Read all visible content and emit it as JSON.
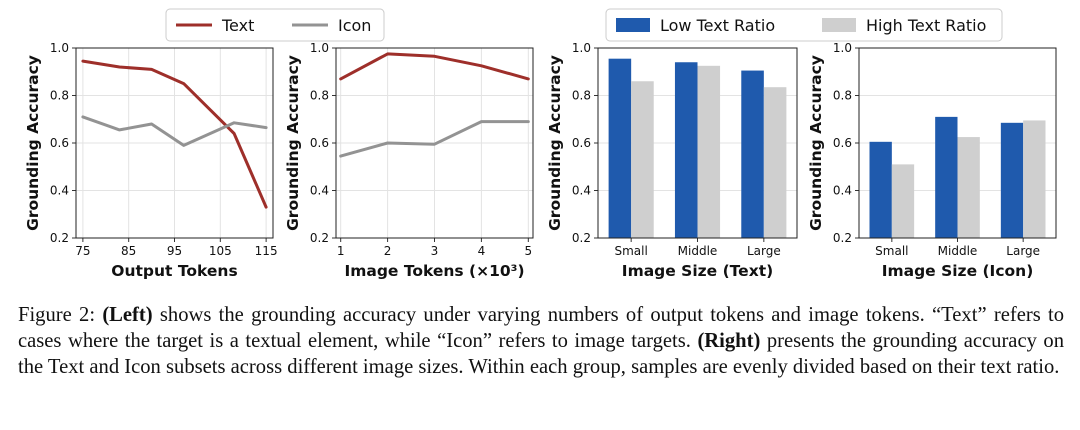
{
  "legends": {
    "left": [
      {
        "label": "Text",
        "color": "#9e2f2a"
      },
      {
        "label": "Icon",
        "color": "#939393"
      }
    ],
    "right": [
      {
        "label": "Low Text Ratio",
        "color": "#1f5aad"
      },
      {
        "label": "High Text Ratio",
        "color": "#cfcfcf"
      }
    ]
  },
  "caption": {
    "fig_label": "Figure 2: ",
    "left_tag": "(Left)",
    "left_text": " shows the grounding accuracy under varying numbers of output tokens and image tokens. “Text” refers to cases where the target is a textual element, while “Icon” refers to image targets. ",
    "right_tag": "(Right)",
    "right_text": " presents the grounding accuracy on the Text and Icon subsets across different image sizes. Within each group, samples are evenly divided based on their text ratio."
  },
  "chart_data": [
    {
      "type": "line",
      "xlabel": "Output Tokens",
      "ylabel": "Grounding Accuracy",
      "x": [
        75,
        80,
        85,
        90,
        95,
        100,
        105,
        110,
        115
      ],
      "xticks": [
        75,
        85,
        95,
        105,
        115
      ],
      "xlim": [
        73.5,
        116.5
      ],
      "ylim": [
        0.2,
        1.0
      ],
      "yticks": [
        "0.2",
        "0.4",
        "0.6",
        "0.8",
        "1.0"
      ],
      "grid": true,
      "series": [
        {
          "name": "Text",
          "color": "#9e2f2a",
          "values": [
            0.945,
            0.92,
            0.91,
            0.85,
            0.64,
            0.33
          ],
          "x": [
            75,
            83,
            90,
            97,
            108,
            115
          ]
        },
        {
          "name": "Icon",
          "color": "#939393",
          "values": [
            0.71,
            0.655,
            0.68,
            0.59,
            0.685,
            0.665
          ],
          "x": [
            75,
            83,
            90,
            97,
            108,
            115
          ]
        }
      ]
    },
    {
      "type": "line",
      "xlabel": "Image Tokens (×10³)",
      "ylabel": "Grounding Accuracy",
      "xticks": [
        1,
        2,
        3,
        4,
        5
      ],
      "xlim": [
        0.9,
        5.1
      ],
      "ylim": [
        0.2,
        1.0
      ],
      "yticks": [
        "0.2",
        "0.4",
        "0.6",
        "0.8",
        "1.0"
      ],
      "grid": true,
      "series": [
        {
          "name": "Text",
          "color": "#9e2f2a",
          "x": [
            1,
            2,
            3,
            4,
            5
          ],
          "values": [
            0.87,
            0.975,
            0.965,
            0.925,
            0.87
          ]
        },
        {
          "name": "Icon",
          "color": "#939393",
          "x": [
            1,
            2,
            3,
            4,
            5
          ],
          "values": [
            0.545,
            0.6,
            0.595,
            0.69,
            0.69
          ]
        }
      ]
    },
    {
      "type": "bar",
      "xlabel": "Image Size (Text)",
      "ylabel": "Grounding Accuracy",
      "categories": [
        "Small",
        "Middle",
        "Large"
      ],
      "ylim": [
        0.2,
        1.0
      ],
      "yticks": [
        "0.2",
        "0.4",
        "0.6",
        "0.8",
        "1.0"
      ],
      "grid": true,
      "series": [
        {
          "name": "Low Text Ratio",
          "color": "#1f5aad",
          "values": [
            0.955,
            0.94,
            0.905
          ]
        },
        {
          "name": "High Text Ratio",
          "color": "#cfcfcf",
          "values": [
            0.86,
            0.925,
            0.835
          ]
        }
      ]
    },
    {
      "type": "bar",
      "xlabel": "Image Size (Icon)",
      "ylabel": "Grounding Accuracy",
      "categories": [
        "Small",
        "Middle",
        "Large"
      ],
      "ylim": [
        0.2,
        1.0
      ],
      "yticks": [
        "0.2",
        "0.4",
        "0.6",
        "0.8",
        "1.0"
      ],
      "grid": true,
      "series": [
        {
          "name": "Low Text Ratio",
          "color": "#1f5aad",
          "values": [
            0.605,
            0.71,
            0.685
          ]
        },
        {
          "name": "High Text Ratio",
          "color": "#cfcfcf",
          "values": [
            0.51,
            0.625,
            0.695
          ]
        }
      ]
    }
  ]
}
